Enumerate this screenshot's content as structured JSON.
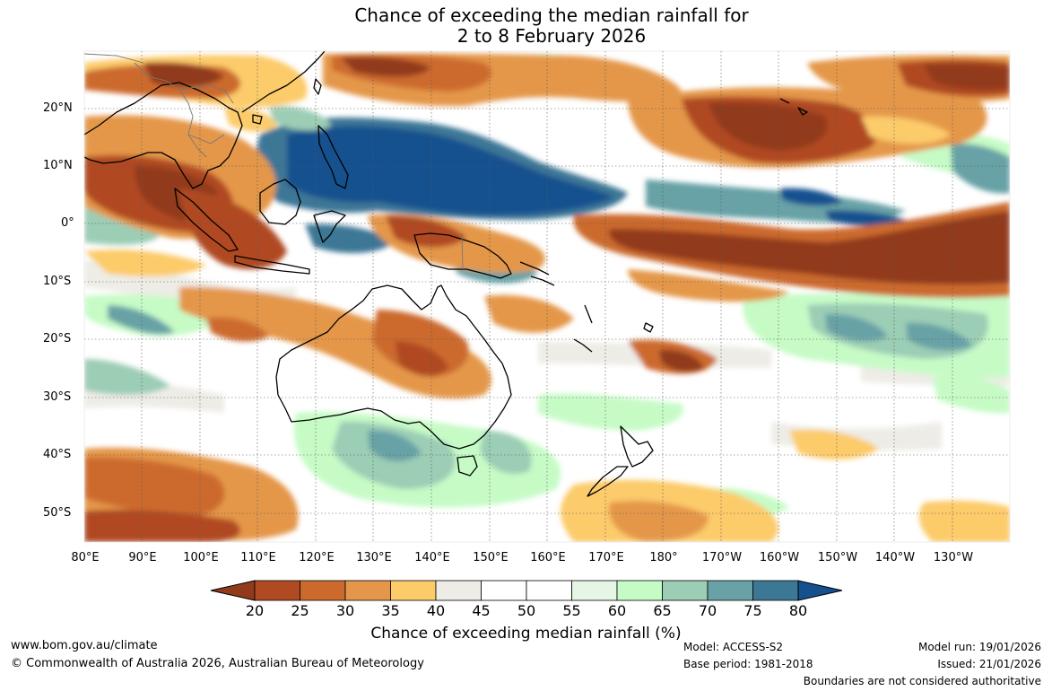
{
  "title": {
    "line1": "Chance of exceeding the median rainfall for",
    "line2": "2 to 8 February 2026"
  },
  "map": {
    "lat_labels": [
      "20°N",
      "10°N",
      "0°",
      "10°S",
      "20°S",
      "30°S",
      "40°S",
      "50°S"
    ],
    "lon_labels": [
      "80°E",
      "90°E",
      "100°E",
      "110°E",
      "120°E",
      "130°E",
      "140°E",
      "150°E",
      "160°E",
      "170°E",
      "180°",
      "170°W",
      "160°W",
      "150°W",
      "140°W",
      "130°W"
    ]
  },
  "colorbar": {
    "ticks": [
      "20",
      "25",
      "30",
      "35",
      "40",
      "45",
      "50",
      "55",
      "60",
      "65",
      "70",
      "75",
      "80"
    ],
    "colors": [
      "#923a1c",
      "#b04a22",
      "#cc6a2e",
      "#e4974a",
      "#fccb6a",
      "#eeece6",
      "#ffffff",
      "#ffffff",
      "#e6f6e6",
      "#c6fbc6",
      "#9ccdb5",
      "#68a2a6",
      "#3d7796",
      "#15518f"
    ],
    "label": "Chance of exceeding median rainfall (%)"
  },
  "footer": {
    "website": "www.bom.gov.au/climate",
    "copyright": "© Commonwealth of Australia 2026, Australian Bureau of Meteorology",
    "model": "Model: ACCESS-S2",
    "base_period": "Base period: 1981-2018",
    "model_run": "Model run: 19/01/2026",
    "issued": "Issued: 21/01/2026",
    "disclaimer": "Boundaries are not considered authoritative"
  }
}
